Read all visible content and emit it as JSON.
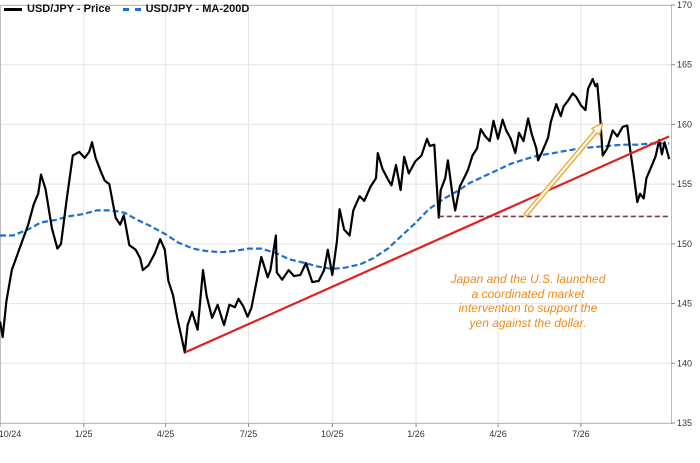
{
  "chart_data": {
    "type": "line",
    "legend": {
      "placement": "top-left",
      "entries": [
        "USD/JPY - Price",
        "USD/JPY - MA-200D"
      ]
    },
    "x_ticks": [
      "10/24",
      "1/25",
      "4/25",
      "7/25",
      "10/25",
      "1/26",
      "4/26",
      "7/26"
    ],
    "x_tick_dates": [
      "2024-10-01",
      "2025-01-01",
      "2025-04-01",
      "2025-07-01",
      "2025-10-01",
      "2026-01-01",
      "2026-04-01",
      "2026-07-01"
    ],
    "x_range": [
      "2024-10-01",
      "2026-10-08"
    ],
    "y_ticks": [
      135,
      140,
      145,
      150,
      155,
      160,
      165,
      170
    ],
    "ylim": [
      135,
      170
    ],
    "grid": true,
    "series": [
      {
        "name": "USD/JPY - Price",
        "color": "#000000",
        "style": "solid",
        "points": [
          [
            "2024-10-01",
            143.5
          ],
          [
            "2024-10-04",
            142.2
          ],
          [
            "2024-10-08",
            145.2
          ],
          [
            "2024-10-14",
            147.8
          ],
          [
            "2024-10-22",
            149.5
          ],
          [
            "2024-11-01",
            151.6
          ],
          [
            "2024-11-07",
            153.3
          ],
          [
            "2024-11-12",
            154.2
          ],
          [
            "2024-11-15",
            155.8
          ],
          [
            "2024-11-20",
            154.6
          ],
          [
            "2024-11-27",
            151.3
          ],
          [
            "2024-12-03",
            149.6
          ],
          [
            "2024-12-07",
            150.0
          ],
          [
            "2024-12-13",
            153.6
          ],
          [
            "2024-12-20",
            157.4
          ],
          [
            "2024-12-27",
            157.7
          ],
          [
            "2025-01-02",
            157.2
          ],
          [
            "2025-01-07",
            157.7
          ],
          [
            "2025-01-10",
            158.5
          ],
          [
            "2025-01-14",
            157.2
          ],
          [
            "2025-01-20",
            156.0
          ],
          [
            "2025-01-24",
            155.3
          ],
          [
            "2025-01-29",
            155.0
          ],
          [
            "2025-02-05",
            152.2
          ],
          [
            "2025-02-10",
            151.6
          ],
          [
            "2025-02-14",
            152.4
          ],
          [
            "2025-02-20",
            149.9
          ],
          [
            "2025-02-27",
            149.5
          ],
          [
            "2025-03-04",
            148.8
          ],
          [
            "2025-03-07",
            147.8
          ],
          [
            "2025-03-13",
            148.2
          ],
          [
            "2025-03-20",
            149.2
          ],
          [
            "2025-03-26",
            150.4
          ],
          [
            "2025-03-31",
            149.5
          ],
          [
            "2025-04-04",
            146.9
          ],
          [
            "2025-04-09",
            145.7
          ],
          [
            "2025-04-14",
            143.7
          ],
          [
            "2025-04-18",
            142.3
          ],
          [
            "2025-04-22",
            140.9
          ],
          [
            "2025-04-25",
            143.2
          ],
          [
            "2025-04-30",
            144.3
          ],
          [
            "2025-05-06",
            142.8
          ],
          [
            "2025-05-12",
            147.8
          ],
          [
            "2025-05-16",
            145.6
          ],
          [
            "2025-05-22",
            143.8
          ],
          [
            "2025-05-28",
            144.9
          ],
          [
            "2025-06-04",
            143.2
          ],
          [
            "2025-06-10",
            144.9
          ],
          [
            "2025-06-16",
            144.7
          ],
          [
            "2025-06-20",
            145.4
          ],
          [
            "2025-06-25",
            144.8
          ],
          [
            "2025-06-30",
            143.9
          ],
          [
            "2025-07-04",
            144.6
          ],
          [
            "2025-07-10",
            146.9
          ],
          [
            "2025-07-15",
            148.9
          ],
          [
            "2025-07-22",
            147.2
          ],
          [
            "2025-07-25",
            147.8
          ],
          [
            "2025-07-31",
            150.7
          ],
          [
            "2025-08-01",
            147.6
          ],
          [
            "2025-08-07",
            147.0
          ],
          [
            "2025-08-14",
            147.8
          ],
          [
            "2025-08-20",
            147.3
          ],
          [
            "2025-08-27",
            147.4
          ],
          [
            "2025-09-02",
            148.4
          ],
          [
            "2025-09-09",
            146.8
          ],
          [
            "2025-09-16",
            146.9
          ],
          [
            "2025-09-22",
            147.8
          ],
          [
            "2025-09-26",
            149.5
          ],
          [
            "2025-10-01",
            147.4
          ],
          [
            "2025-10-06",
            150.2
          ],
          [
            "2025-10-09",
            152.9
          ],
          [
            "2025-10-14",
            151.2
          ],
          [
            "2025-10-20",
            150.7
          ],
          [
            "2025-10-24",
            152.8
          ],
          [
            "2025-10-31",
            154.0
          ],
          [
            "2025-11-05",
            153.6
          ],
          [
            "2025-11-12",
            154.8
          ],
          [
            "2025-11-18",
            155.5
          ],
          [
            "2025-11-20",
            157.6
          ],
          [
            "2025-11-25",
            156.3
          ],
          [
            "2025-12-01",
            155.4
          ],
          [
            "2025-12-05",
            154.9
          ],
          [
            "2025-12-10",
            156.6
          ],
          [
            "2025-12-15",
            154.5
          ],
          [
            "2025-12-19",
            157.3
          ],
          [
            "2025-12-24",
            155.9
          ],
          [
            "2025-12-31",
            156.9
          ],
          [
            "2026-01-07",
            157.4
          ],
          [
            "2026-01-13",
            158.8
          ],
          [
            "2026-01-16",
            158.2
          ],
          [
            "2026-01-21",
            158.3
          ],
          [
            "2026-01-23",
            155.8
          ],
          [
            "2026-01-26",
            152.2
          ],
          [
            "2026-01-28",
            154.5
          ],
          [
            "2026-02-02",
            155.5
          ],
          [
            "2026-02-05",
            157.0
          ],
          [
            "2026-02-10",
            154.1
          ],
          [
            "2026-02-13",
            152.8
          ],
          [
            "2026-02-18",
            154.8
          ],
          [
            "2026-02-24",
            155.7
          ],
          [
            "2026-02-27",
            156.2
          ],
          [
            "2026-03-04",
            157.4
          ],
          [
            "2026-03-09",
            158.0
          ],
          [
            "2026-03-13",
            159.6
          ],
          [
            "2026-03-18",
            159.0
          ],
          [
            "2026-03-23",
            158.6
          ],
          [
            "2026-03-27",
            160.3
          ],
          [
            "2026-04-01",
            158.8
          ],
          [
            "2026-04-06",
            160.4
          ],
          [
            "2026-04-10",
            159.5
          ],
          [
            "2026-04-15",
            158.8
          ],
          [
            "2026-04-20",
            157.6
          ],
          [
            "2026-04-24",
            159.3
          ],
          [
            "2026-04-29",
            158.6
          ],
          [
            "2026-05-04",
            160.5
          ],
          [
            "2026-05-08",
            159.2
          ],
          [
            "2026-05-13",
            158.0
          ],
          [
            "2026-05-15",
            157.0
          ],
          [
            "2026-05-20",
            157.8
          ],
          [
            "2026-05-26",
            158.9
          ],
          [
            "2026-05-29",
            160.2
          ],
          [
            "2026-06-04",
            161.7
          ],
          [
            "2026-06-09",
            160.7
          ],
          [
            "2026-06-12",
            161.5
          ],
          [
            "2026-06-17",
            162.0
          ],
          [
            "2026-06-22",
            162.6
          ],
          [
            "2026-06-26",
            162.3
          ],
          [
            "2026-07-01",
            161.6
          ],
          [
            "2026-07-06",
            161.2
          ],
          [
            "2026-07-09",
            163.0
          ],
          [
            "2026-07-14",
            163.8
          ],
          [
            "2026-07-17",
            163.2
          ],
          [
            "2026-07-19",
            163.4
          ],
          [
            "2026-07-22",
            160.8
          ],
          [
            "2026-07-25",
            157.4
          ],
          [
            "2026-07-30",
            158.0
          ],
          [
            "2026-08-05",
            159.5
          ],
          [
            "2026-08-10",
            159.0
          ],
          [
            "2026-08-16",
            159.8
          ],
          [
            "2026-08-21",
            159.9
          ],
          [
            "2026-08-24",
            158.0
          ],
          [
            "2026-08-28",
            155.8
          ],
          [
            "2026-09-01",
            153.5
          ],
          [
            "2026-09-04",
            154.2
          ],
          [
            "2026-09-08",
            153.8
          ],
          [
            "2026-09-11",
            155.5
          ],
          [
            "2026-09-16",
            156.4
          ],
          [
            "2026-09-21",
            157.3
          ],
          [
            "2026-09-25",
            158.7
          ],
          [
            "2026-09-28",
            157.5
          ],
          [
            "2026-10-01",
            158.5
          ],
          [
            "2026-10-06",
            157.1
          ]
        ]
      },
      {
        "name": "USD/JPY - MA-200D",
        "color": "#1f6fd1",
        "style": "dashed",
        "points": [
          [
            "2024-10-01",
            150.7
          ],
          [
            "2024-10-15",
            150.7
          ],
          [
            "2024-11-01",
            151.2
          ],
          [
            "2024-11-15",
            151.8
          ],
          [
            "2024-12-01",
            152.0
          ],
          [
            "2024-12-15",
            152.3
          ],
          [
            "2025-01-01",
            152.5
          ],
          [
            "2025-01-15",
            152.8
          ],
          [
            "2025-02-01",
            152.8
          ],
          [
            "2025-02-15",
            152.6
          ],
          [
            "2025-03-01",
            152.0
          ],
          [
            "2025-03-15",
            151.5
          ],
          [
            "2025-04-01",
            150.8
          ],
          [
            "2025-04-15",
            150.1
          ],
          [
            "2025-05-01",
            149.6
          ],
          [
            "2025-05-15",
            149.4
          ],
          [
            "2025-06-01",
            149.3
          ],
          [
            "2025-06-15",
            149.4
          ],
          [
            "2025-07-01",
            149.6
          ],
          [
            "2025-07-15",
            149.6
          ],
          [
            "2025-08-01",
            149.2
          ],
          [
            "2025-08-15",
            148.7
          ],
          [
            "2025-09-01",
            148.4
          ],
          [
            "2025-09-15",
            148.1
          ],
          [
            "2025-10-01",
            147.9
          ],
          [
            "2025-10-15",
            148.0
          ],
          [
            "2025-11-01",
            148.3
          ],
          [
            "2025-11-15",
            148.8
          ],
          [
            "2025-12-01",
            149.6
          ],
          [
            "2025-12-15",
            150.6
          ],
          [
            "2026-01-01",
            151.8
          ],
          [
            "2026-01-15",
            152.9
          ],
          [
            "2026-02-01",
            153.8
          ],
          [
            "2026-02-15",
            154.4
          ],
          [
            "2026-03-01",
            155.1
          ],
          [
            "2026-03-15",
            155.6
          ],
          [
            "2026-04-01",
            156.2
          ],
          [
            "2026-04-15",
            156.7
          ],
          [
            "2026-05-01",
            157.1
          ],
          [
            "2026-05-15",
            157.4
          ],
          [
            "2026-06-01",
            157.6
          ],
          [
            "2026-06-15",
            157.8
          ],
          [
            "2026-07-01",
            158.0
          ],
          [
            "2026-07-15",
            158.1
          ],
          [
            "2026-08-01",
            158.2
          ],
          [
            "2026-08-15",
            158.3
          ],
          [
            "2026-09-01",
            158.3
          ],
          [
            "2026-09-15",
            158.4
          ],
          [
            "2026-10-06",
            158.4
          ]
        ]
      }
    ],
    "overlays": [
      {
        "kind": "trendline",
        "color": "#e02020",
        "from": [
          "2025-04-22",
          140.9
        ],
        "to": [
          "2026-10-06",
          159.0
        ]
      },
      {
        "kind": "horizontal_line",
        "color": "#8b2a4a",
        "style": "dashed",
        "y": 152.3,
        "from": "2026-01-26",
        "to": "2026-10-06"
      },
      {
        "kind": "arrow",
        "color": "#f0a020",
        "from": [
          "2026-05-01",
          152.4
        ],
        "to": [
          "2026-07-25",
          160.1
        ]
      }
    ],
    "annotations": [
      {
        "lines": [
          "Japan and the U.S. launched",
          "a coordinated market",
          "intervention to support the",
          "yen against the dollar."
        ],
        "color": "#f08a1a"
      }
    ]
  }
}
